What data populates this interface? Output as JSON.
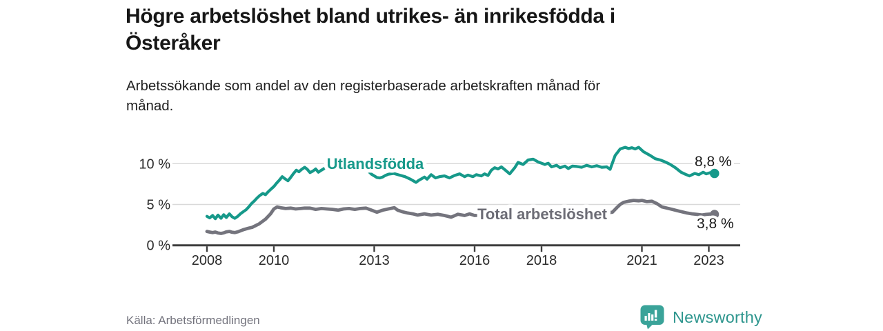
{
  "title_lines": [
    "Högre arbetslöshet bland utrikes- än inrikesfödda i",
    "Österåker"
  ],
  "subtitle_lines": [
    "Arbetssökande som andel av den registerbaserade arbetskraften månad för",
    "månad."
  ],
  "source": "Källa: Arbetsförmedlingen",
  "logo": {
    "brand": "Newsworthy",
    "icon": "newsworthy-chart-bubble-icon"
  },
  "colors": {
    "foreign_born_line": "#16998a",
    "total_line": "#74747d",
    "total_label_text": "#6c6c75",
    "grid": "#d9d9d9",
    "axis": "#3e3e3e",
    "value_label_text": "#1a1a1a",
    "logo_teal": "#3aa399",
    "logo_text_teal": "#2e968e"
  },
  "chart_data": {
    "type": "line",
    "title": "Högre arbetslöshet bland utrikes- än inrikesfödda i Österåker",
    "subtitle": "Arbetssökande som andel av den registerbaserade arbetskraften månad för månad.",
    "grid": "horizontal",
    "legend": "inline-labels",
    "x_axis": {
      "ticks": [
        2008,
        2010,
        2013,
        2016,
        2018,
        2021,
        2023
      ],
      "labels": [
        "2008",
        "2010",
        "2013",
        "2016",
        "2018",
        "2021",
        "2023"
      ],
      "range": [
        2007.9,
        2023.9
      ]
    },
    "y_axis": {
      "ticks": [
        0,
        5,
        10
      ],
      "labels": [
        "0 %",
        "5 %",
        "10 %"
      ],
      "range": [
        0,
        12.8
      ],
      "unit": "%"
    },
    "series": [
      {
        "name": "Utlandsfödda",
        "color": "#16998a",
        "end_label": "8,8 %",
        "end_value": 8.8,
        "points": [
          [
            2008.0,
            3.55
          ],
          [
            2008.08,
            3.35
          ],
          [
            2008.17,
            3.65
          ],
          [
            2008.25,
            3.25
          ],
          [
            2008.33,
            3.7
          ],
          [
            2008.42,
            3.3
          ],
          [
            2008.5,
            3.75
          ],
          [
            2008.58,
            3.4
          ],
          [
            2008.67,
            3.85
          ],
          [
            2008.75,
            3.5
          ],
          [
            2008.83,
            3.3
          ],
          [
            2008.92,
            3.55
          ],
          [
            2009.0,
            3.85
          ],
          [
            2009.08,
            4.1
          ],
          [
            2009.17,
            4.35
          ],
          [
            2009.25,
            4.7
          ],
          [
            2009.33,
            5.1
          ],
          [
            2009.42,
            5.45
          ],
          [
            2009.5,
            5.8
          ],
          [
            2009.58,
            6.1
          ],
          [
            2009.67,
            6.35
          ],
          [
            2009.75,
            6.2
          ],
          [
            2009.83,
            6.55
          ],
          [
            2009.92,
            6.9
          ],
          [
            2010.0,
            7.2
          ],
          [
            2010.08,
            7.6
          ],
          [
            2010.17,
            8.0
          ],
          [
            2010.25,
            8.4
          ],
          [
            2010.33,
            8.15
          ],
          [
            2010.42,
            7.9
          ],
          [
            2010.5,
            8.3
          ],
          [
            2010.58,
            8.75
          ],
          [
            2010.67,
            9.2
          ],
          [
            2010.75,
            9.0
          ],
          [
            2010.83,
            9.3
          ],
          [
            2010.92,
            9.55
          ],
          [
            2011.0,
            9.3
          ],
          [
            2011.08,
            8.9
          ],
          [
            2011.17,
            9.1
          ],
          [
            2011.25,
            9.35
          ],
          [
            2011.33,
            8.95
          ],
          [
            2011.42,
            9.2
          ],
          [
            2011.5,
            9.4
          ],
          [
            2011.58,
            9.55
          ],
          [
            2011.67,
            9.4
          ],
          [
            2011.75,
            9.5
          ],
          [
            2011.83,
            9.6
          ],
          [
            2011.92,
            9.45
          ],
          [
            2012.0,
            9.55
          ],
          [
            2012.17,
            9.7
          ],
          [
            2012.33,
            9.6
          ],
          [
            2012.5,
            9.65
          ],
          [
            2012.67,
            9.45
          ],
          [
            2012.83,
            9.05
          ],
          [
            2012.92,
            8.7
          ],
          [
            2013.0,
            8.5
          ],
          [
            2013.08,
            8.3
          ],
          [
            2013.17,
            8.25
          ],
          [
            2013.25,
            8.35
          ],
          [
            2013.33,
            8.55
          ],
          [
            2013.42,
            8.7
          ],
          [
            2013.58,
            8.8
          ],
          [
            2013.75,
            8.6
          ],
          [
            2013.92,
            8.4
          ],
          [
            2014.08,
            8.1
          ],
          [
            2014.25,
            7.7
          ],
          [
            2014.33,
            7.95
          ],
          [
            2014.5,
            8.35
          ],
          [
            2014.58,
            8.1
          ],
          [
            2014.7,
            8.65
          ],
          [
            2014.83,
            8.25
          ],
          [
            2014.95,
            8.4
          ],
          [
            2015.1,
            8.5
          ],
          [
            2015.25,
            8.25
          ],
          [
            2015.4,
            8.55
          ],
          [
            2015.55,
            8.75
          ],
          [
            2015.7,
            8.4
          ],
          [
            2015.8,
            8.6
          ],
          [
            2015.95,
            8.4
          ],
          [
            2016.05,
            8.65
          ],
          [
            2016.2,
            8.5
          ],
          [
            2016.3,
            8.75
          ],
          [
            2016.4,
            8.55
          ],
          [
            2016.5,
            9.2
          ],
          [
            2016.6,
            9.5
          ],
          [
            2016.7,
            9.35
          ],
          [
            2016.8,
            9.6
          ],
          [
            2016.92,
            9.2
          ],
          [
            2017.05,
            8.75
          ],
          [
            2017.2,
            9.5
          ],
          [
            2017.3,
            10.15
          ],
          [
            2017.45,
            9.9
          ],
          [
            2017.6,
            10.45
          ],
          [
            2017.75,
            10.55
          ],
          [
            2017.9,
            10.2
          ],
          [
            2018.0,
            10.05
          ],
          [
            2018.1,
            9.9
          ],
          [
            2018.2,
            10.05
          ],
          [
            2018.3,
            9.6
          ],
          [
            2018.45,
            9.8
          ],
          [
            2018.55,
            9.5
          ],
          [
            2018.7,
            9.7
          ],
          [
            2018.8,
            9.4
          ],
          [
            2018.92,
            9.7
          ],
          [
            2019.05,
            9.65
          ],
          [
            2019.2,
            9.55
          ],
          [
            2019.35,
            9.8
          ],
          [
            2019.5,
            9.6
          ],
          [
            2019.65,
            9.75
          ],
          [
            2019.8,
            9.55
          ],
          [
            2019.95,
            9.6
          ],
          [
            2020.05,
            9.3
          ],
          [
            2020.2,
            11.0
          ],
          [
            2020.35,
            11.8
          ],
          [
            2020.5,
            12.0
          ],
          [
            2020.6,
            11.85
          ],
          [
            2020.7,
            11.95
          ],
          [
            2020.8,
            11.8
          ],
          [
            2020.9,
            12.0
          ],
          [
            2021.05,
            11.45
          ],
          [
            2021.25,
            11.0
          ],
          [
            2021.4,
            10.6
          ],
          [
            2021.55,
            10.45
          ],
          [
            2021.7,
            10.2
          ],
          [
            2021.85,
            9.9
          ],
          [
            2022.0,
            9.5
          ],
          [
            2022.17,
            8.95
          ],
          [
            2022.3,
            8.7
          ],
          [
            2022.42,
            8.5
          ],
          [
            2022.58,
            8.8
          ],
          [
            2022.7,
            8.65
          ],
          [
            2022.83,
            8.95
          ],
          [
            2022.92,
            8.75
          ],
          [
            2023.05,
            8.9
          ],
          [
            2023.17,
            8.8
          ]
        ]
      },
      {
        "name": "Total arbetslöshet",
        "color": "#74747d",
        "end_label": "3,8 %",
        "end_value": 3.8,
        "points": [
          [
            2008.0,
            1.7
          ],
          [
            2008.08,
            1.62
          ],
          [
            2008.17,
            1.55
          ],
          [
            2008.25,
            1.62
          ],
          [
            2008.33,
            1.5
          ],
          [
            2008.42,
            1.45
          ],
          [
            2008.5,
            1.52
          ],
          [
            2008.58,
            1.65
          ],
          [
            2008.67,
            1.7
          ],
          [
            2008.75,
            1.6
          ],
          [
            2008.83,
            1.55
          ],
          [
            2008.92,
            1.65
          ],
          [
            2009.08,
            1.9
          ],
          [
            2009.25,
            2.1
          ],
          [
            2009.35,
            2.2
          ],
          [
            2009.55,
            2.6
          ],
          [
            2009.75,
            3.2
          ],
          [
            2009.9,
            3.85
          ],
          [
            2010.0,
            4.45
          ],
          [
            2010.1,
            4.7
          ],
          [
            2010.2,
            4.6
          ],
          [
            2010.35,
            4.5
          ],
          [
            2010.5,
            4.55
          ],
          [
            2010.65,
            4.45
          ],
          [
            2010.8,
            4.5
          ],
          [
            2010.92,
            4.55
          ],
          [
            2011.08,
            4.55
          ],
          [
            2011.25,
            4.4
          ],
          [
            2011.42,
            4.5
          ],
          [
            2011.58,
            4.45
          ],
          [
            2011.75,
            4.4
          ],
          [
            2011.92,
            4.3
          ],
          [
            2012.08,
            4.45
          ],
          [
            2012.25,
            4.5
          ],
          [
            2012.42,
            4.4
          ],
          [
            2012.58,
            4.5
          ],
          [
            2012.75,
            4.55
          ],
          [
            2012.92,
            4.3
          ],
          [
            2013.08,
            4.05
          ],
          [
            2013.25,
            4.3
          ],
          [
            2013.42,
            4.45
          ],
          [
            2013.6,
            4.6
          ],
          [
            2013.7,
            4.3
          ],
          [
            2013.85,
            4.1
          ],
          [
            2014.0,
            3.95
          ],
          [
            2014.15,
            3.85
          ],
          [
            2014.3,
            3.7
          ],
          [
            2014.5,
            3.85
          ],
          [
            2014.7,
            3.7
          ],
          [
            2014.9,
            3.8
          ],
          [
            2015.1,
            3.65
          ],
          [
            2015.3,
            3.45
          ],
          [
            2015.5,
            3.8
          ],
          [
            2015.7,
            3.65
          ],
          [
            2015.85,
            3.85
          ],
          [
            2016.0,
            3.65
          ],
          [
            2016.2,
            3.7
          ],
          [
            2016.5,
            3.6
          ],
          [
            2016.8,
            3.65
          ],
          [
            2017.1,
            3.7
          ],
          [
            2017.4,
            3.75
          ],
          [
            2017.7,
            3.8
          ],
          [
            2018.0,
            3.85
          ],
          [
            2018.3,
            3.8
          ],
          [
            2018.6,
            3.85
          ],
          [
            2018.9,
            3.9
          ],
          [
            2019.2,
            3.95
          ],
          [
            2019.5,
            4.0
          ],
          [
            2019.8,
            4.05
          ],
          [
            2020.0,
            4.0
          ],
          [
            2020.12,
            4.05
          ],
          [
            2020.25,
            4.6
          ],
          [
            2020.35,
            5.0
          ],
          [
            2020.45,
            5.25
          ],
          [
            2020.6,
            5.4
          ],
          [
            2020.75,
            5.5
          ],
          [
            2020.9,
            5.45
          ],
          [
            2021.0,
            5.5
          ],
          [
            2021.15,
            5.35
          ],
          [
            2021.3,
            5.4
          ],
          [
            2021.45,
            5.1
          ],
          [
            2021.6,
            4.7
          ],
          [
            2021.75,
            4.55
          ],
          [
            2021.9,
            4.4
          ],
          [
            2022.05,
            4.25
          ],
          [
            2022.2,
            4.1
          ],
          [
            2022.35,
            3.95
          ],
          [
            2022.5,
            3.85
          ],
          [
            2022.65,
            3.78
          ],
          [
            2022.8,
            3.72
          ],
          [
            2022.92,
            3.78
          ],
          [
            2023.05,
            3.83
          ],
          [
            2023.17,
            3.8
          ]
        ]
      }
    ]
  }
}
